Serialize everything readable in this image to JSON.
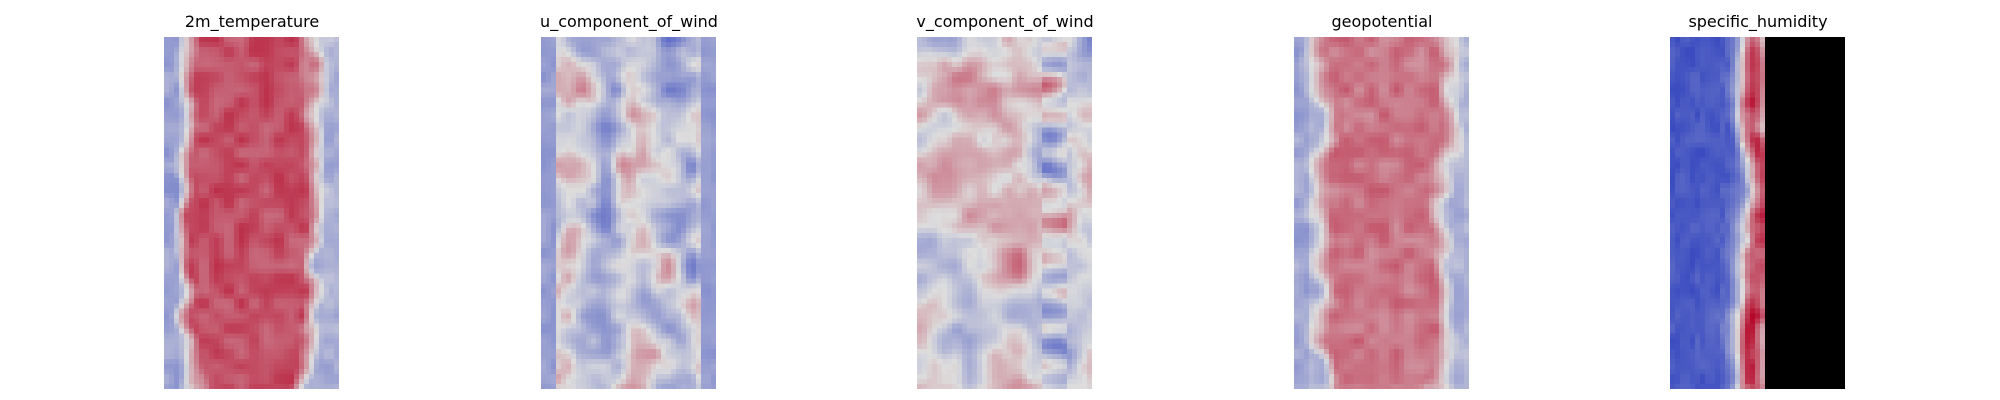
{
  "chart_data": {
    "type": "heatmap",
    "colormap": "coolwarm",
    "colors": {
      "low": "#3b4cc0",
      "mid": "#dddddd",
      "high": "#b40426"
    },
    "panels": [
      {
        "title": "2m_temperature",
        "pattern": "warm-band",
        "band_level": 0.83,
        "edge_level": 0.34
      },
      {
        "title": "u_component_of_wind",
        "pattern": "turbulent-streaks",
        "band_level": 0.42,
        "edge_level": 0.28
      },
      {
        "title": "v_component_of_wind",
        "pattern": "turbulent-noise",
        "band_level": 0.5,
        "edge_level": 0.4
      },
      {
        "title": "geopotential",
        "pattern": "warm-band",
        "band_level": 0.74,
        "edge_level": 0.36
      },
      {
        "title": "specific_humidity",
        "pattern": "humid-core",
        "band_level": 0.86,
        "edge_level": 0.04
      }
    ]
  }
}
